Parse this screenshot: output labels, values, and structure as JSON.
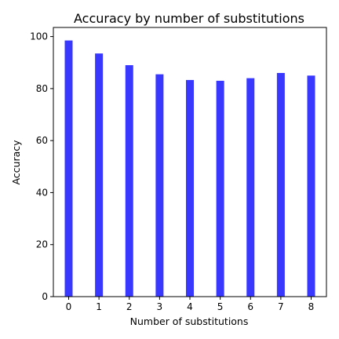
{
  "chart_data": {
    "type": "bar",
    "title": "Accuracy by number of substitutions",
    "xlabel": "Number of substitutions",
    "ylabel": "Accuracy",
    "categories": [
      "0",
      "1",
      "2",
      "3",
      "4",
      "5",
      "6",
      "7",
      "8"
    ],
    "values": [
      98.5,
      93.5,
      89,
      85.5,
      83.3,
      83,
      84,
      86,
      85
    ],
    "ylim": [
      0,
      103.5
    ],
    "yticks": [
      0,
      20,
      40,
      60,
      80,
      100
    ],
    "bar_color": "#3838ff",
    "grid": false,
    "legend": "none"
  }
}
